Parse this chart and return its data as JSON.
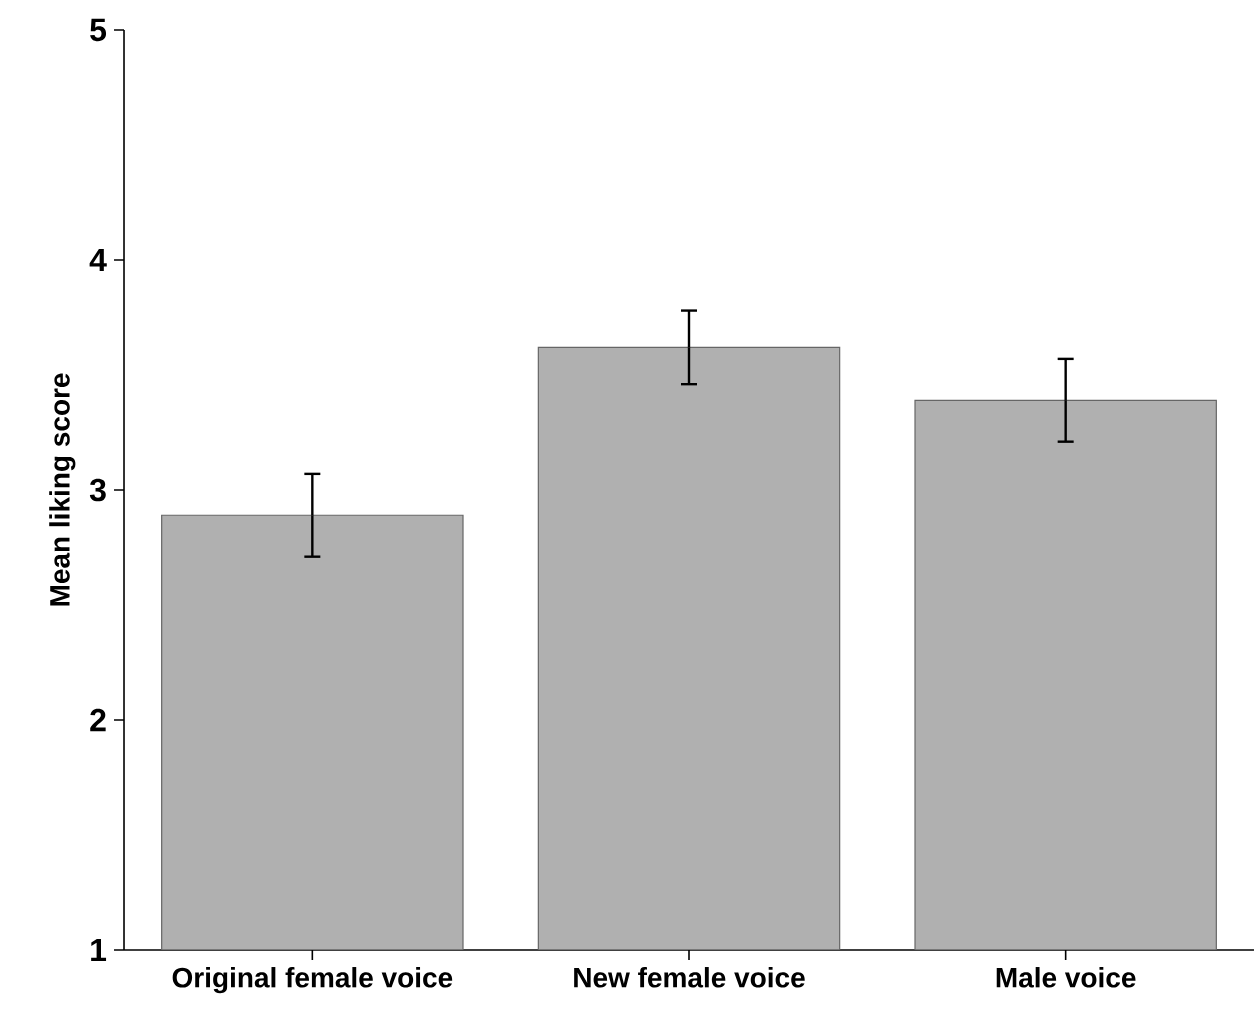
{
  "chart_data": {
    "type": "bar",
    "ylabel": "Mean liking score",
    "categories": [
      "Original female voice",
      "New female voice",
      "Male voice"
    ],
    "values": [
      2.89,
      3.62,
      3.39
    ],
    "errors": [
      0.18,
      0.16,
      0.18
    ],
    "color": "#b0b0b0",
    "ylim": [
      1,
      5
    ],
    "yticks": [
      1,
      2,
      3,
      4,
      5
    ]
  }
}
